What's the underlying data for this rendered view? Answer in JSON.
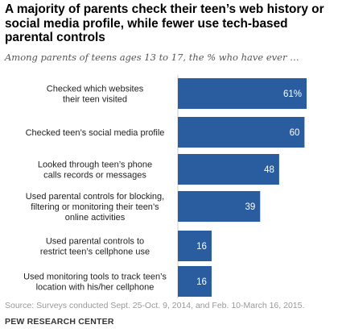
{
  "title": "A majority of parents check their teen’s web history or social media profile, while fewer use tech-based parental controls",
  "subtitle": "Among parents of teens ages 13 to 17, the % who have ever …",
  "source": "Source: Surveys conducted Sept. 25-Oct. 9, 2014, and Feb. 10-March 16, 2015.",
  "brand": "PEW RESEARCH CENTER",
  "colors": {
    "bar": "#2a5d9f",
    "label": "#ffffff",
    "category": "#222222",
    "axis": "#cccccc"
  },
  "chart_data": {
    "type": "bar",
    "orientation": "horizontal",
    "categories": [
      [
        "Checked which websites",
        "their teen visited"
      ],
      [
        "Checked teen’s social media profile"
      ],
      [
        "Looked through teen’s phone",
        "calls records or messages"
      ],
      [
        "Used parental controls for blocking,",
        "filtering or monitoring their teen’s",
        "online activities"
      ],
      [
        "Used parental controls to",
        "restrict teen’s cellphone use"
      ],
      [
        "Used monitoring tools to track teen’s",
        "location with his/her cellphone"
      ]
    ],
    "values": [
      61,
      60,
      48,
      39,
      16,
      16
    ],
    "value_labels": [
      "61%",
      "60",
      "48",
      "39",
      "16",
      "16"
    ],
    "xlim": [
      0,
      61
    ],
    "grid": false,
    "legend": "none"
  }
}
